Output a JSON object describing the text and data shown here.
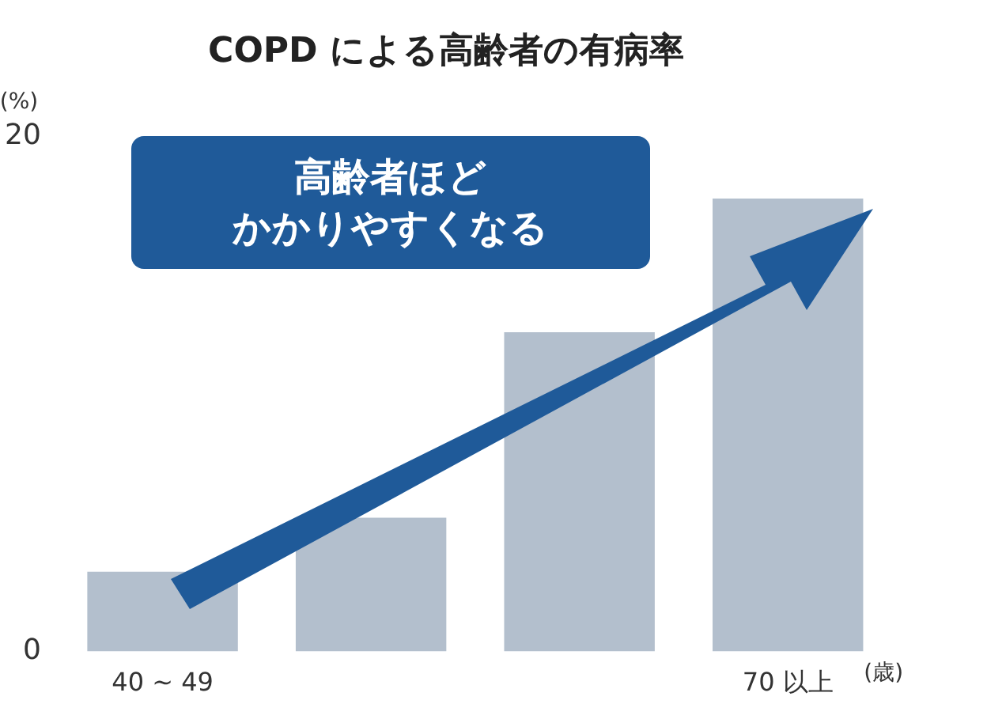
{
  "chart_data": {
    "type": "bar",
    "title": "COPD による高齢者の有病率",
    "ylabel": "(%)",
    "xlabel": "(歳)",
    "categories": [
      "40 ~ 49",
      null,
      null,
      "70 以上"
    ],
    "values": [
      3.1,
      5.2,
      12.4,
      17.6
    ],
    "color": "#b3bfcd",
    "ylim": [
      0,
      20
    ],
    "yticks": [
      0,
      20
    ],
    "grid": false,
    "legend": false,
    "annotations": [
      "高齢者ほど",
      "かかりやすくなる"
    ]
  }
}
